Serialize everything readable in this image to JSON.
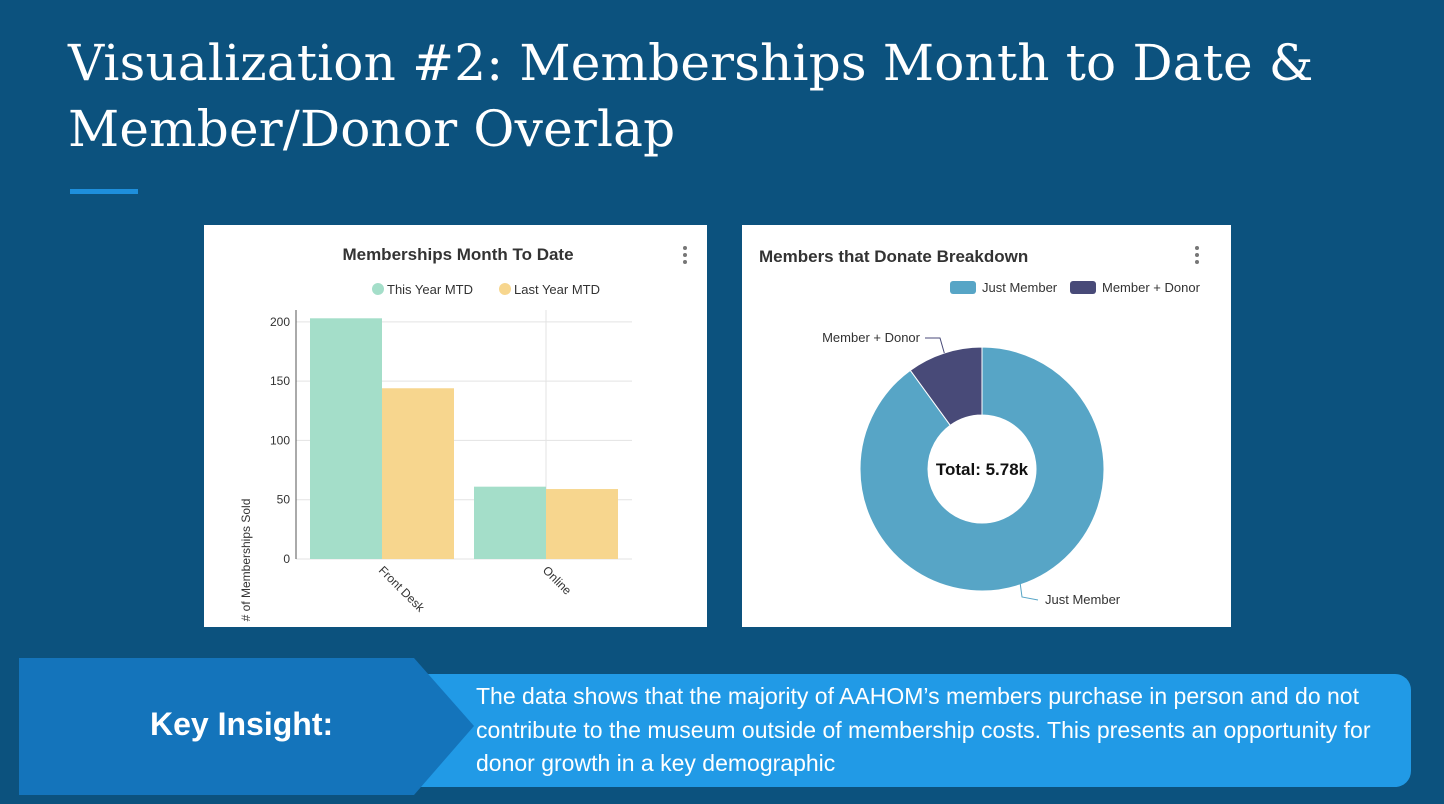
{
  "slide": {
    "title_line1": "Visualization #2: Memberships Month to Date &",
    "title_line2": "Member/Donor Overlap"
  },
  "colors": {
    "background": "#0c527e",
    "accent": "#1e8fdc",
    "this_year": "#a4dec9",
    "last_year": "#f7d68e",
    "just_member": "#57a5c6",
    "member_donor": "#484a78",
    "insight_dark": "#1474bb",
    "insight_light": "#219ae6"
  },
  "chart_data": [
    {
      "type": "bar",
      "title": "Memberships Month To Date",
      "categories": [
        "Front Desk",
        "Online"
      ],
      "series": [
        {
          "name": "This Year MTD",
          "values": [
            203,
            61
          ],
          "color": "#a4dec9"
        },
        {
          "name": "Last Year MTD",
          "values": [
            144,
            59
          ],
          "color": "#f7d68e"
        }
      ],
      "xlabel": "",
      "ylabel": "# of Memberships Sold",
      "ylim": [
        0,
        210
      ],
      "yticks": [
        0,
        50,
        100,
        150,
        200
      ],
      "legend": "top",
      "grid": true
    },
    {
      "type": "pie",
      "donut": true,
      "title": "Members that Donate Breakdown",
      "labels": [
        "Just Member",
        "Member + Donor"
      ],
      "values": [
        0.9,
        0.1
      ],
      "colors": [
        "#57a5c6",
        "#484a78"
      ],
      "center_label": "Total: 5.78k",
      "legend": "top-right"
    }
  ],
  "insight": {
    "label": "Key Insight:",
    "text": "The data shows that the majority of AAHOM’s members purchase in person and do not contribute to the museum outside of membership costs. This presents an opportunity for donor growth in a key demographic"
  }
}
